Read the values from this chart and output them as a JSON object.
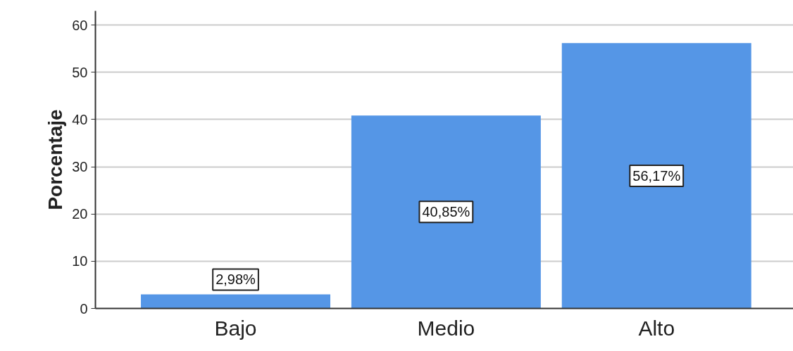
{
  "chart_data": {
    "type": "bar",
    "ylabel": "Porcentaje",
    "categories": [
      "Bajo",
      "Medio",
      "Alto"
    ],
    "values": [
      2.98,
      40.85,
      56.17
    ],
    "value_labels": [
      "2,98%",
      "40,85%",
      "56,17%"
    ],
    "color": "#5596e6",
    "ylim": [
      0,
      63
    ],
    "yticks": [
      0,
      10,
      20,
      30,
      40,
      50,
      60
    ],
    "grid": "y"
  }
}
